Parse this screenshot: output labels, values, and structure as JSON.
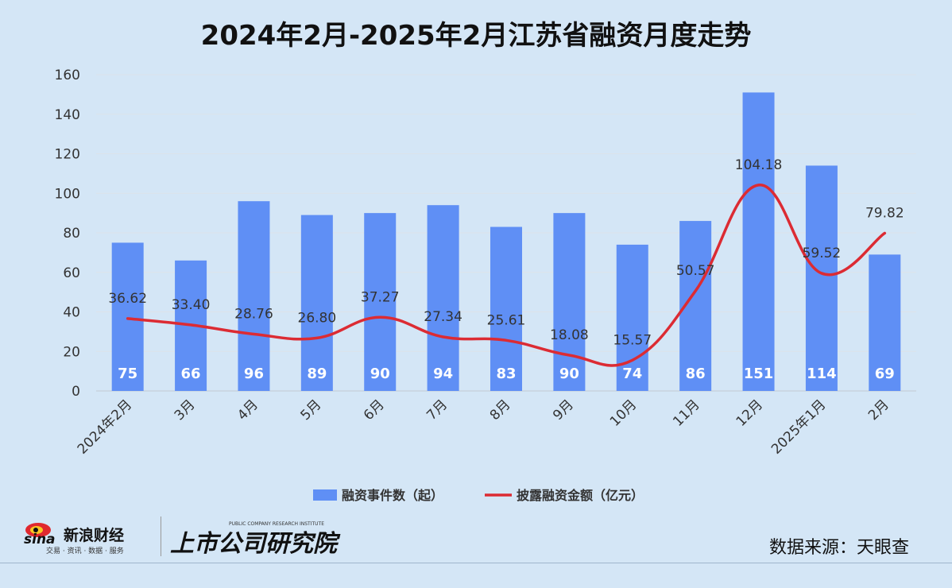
{
  "chart_data": {
    "type": "bar+line",
    "title": "2024年2月-2025年2月江苏省融资月度走势",
    "categories": [
      "2024年2月",
      "3月",
      "4月",
      "5月",
      "6月",
      "7月",
      "8月",
      "9月",
      "10月",
      "11月",
      "12月",
      "2025年1月",
      "2月"
    ],
    "series": [
      {
        "name": "融资事件数（起）",
        "type": "bar",
        "color": "#5f8ff5",
        "values": [
          75,
          66,
          96,
          89,
          90,
          94,
          83,
          90,
          74,
          86,
          151,
          114,
          69
        ]
      },
      {
        "name": "披露融资金额（亿元）",
        "type": "line",
        "color": "#dc2b33",
        "values": [
          36.62,
          33.4,
          28.76,
          26.8,
          37.27,
          27.34,
          25.61,
          18.08,
          15.57,
          50.57,
          104.18,
          59.52,
          79.82
        ],
        "labels": [
          "36.62",
          "33.40",
          "28.76",
          "26.80",
          "37.27",
          "27.34",
          "25.61",
          "18.08",
          "15.57",
          "50.57",
          "104.18",
          "59.52",
          "79.82"
        ]
      }
    ],
    "ylim": [
      0,
      160
    ],
    "yticks": [
      "0",
      "20",
      "40",
      "60",
      "80",
      "100",
      "120",
      "140",
      "160"
    ],
    "grid": true,
    "legend_position": "bottom"
  },
  "footer": {
    "source": "数据来源：天眼查",
    "brand_sina": "新浪财经",
    "brand_sina_sub": "交易 · 资讯 · 数据 · 服务",
    "brand_sina_mark": "sina",
    "brand_institute": "上市公司研究院",
    "brand_institute_en": "PUBLIC COMPANY RESEARCH INSTITUTE"
  },
  "colors": {
    "bar": "#5f8ff5",
    "line": "#dc2b33",
    "background": "#d4e6f6"
  }
}
